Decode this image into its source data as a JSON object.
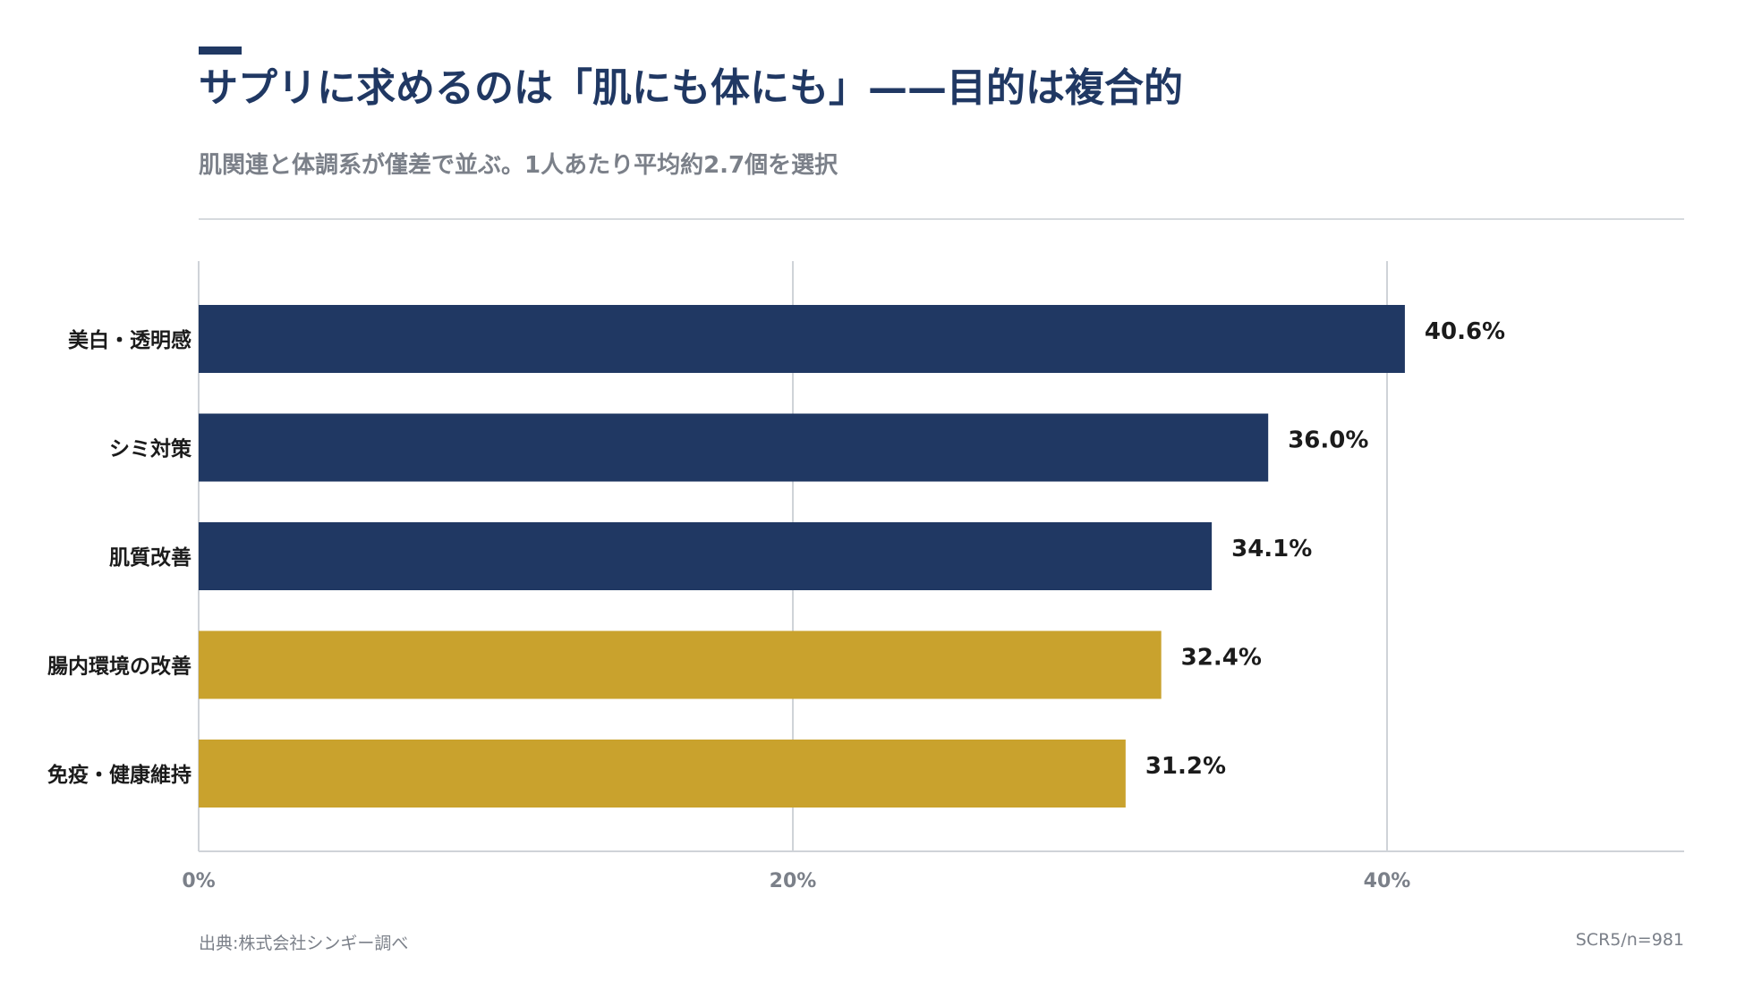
{
  "header": {
    "title": "サプリに求めるのは「肌にも体にも」——目的は複合的",
    "subtitle": "肌関連と体調系が僅差で並ぶ。1人あたり平均約2.7個を選択"
  },
  "chart_data": {
    "type": "bar",
    "orientation": "horizontal",
    "categories": [
      "美白・透明感",
      "シミ対策",
      "肌質改善",
      "腸内環境の改善",
      "免疫・健康維持"
    ],
    "values": [
      40.6,
      36.0,
      34.1,
      32.4,
      31.2
    ],
    "value_labels": [
      "40.6%",
      "36.0%",
      "34.1%",
      "32.4%",
      "31.2%"
    ],
    "bar_colors": [
      "#203863",
      "#203863",
      "#203863",
      "#c9a22d",
      "#c9a22d"
    ],
    "xlim": [
      0,
      50
    ],
    "xticks": [
      0,
      20,
      40
    ],
    "xtick_labels": [
      "0%",
      "20%",
      "40%"
    ],
    "grid": true
  },
  "footer": {
    "source": "出典:株式会社シンギー調べ",
    "sample": "SCR5/n=981"
  }
}
